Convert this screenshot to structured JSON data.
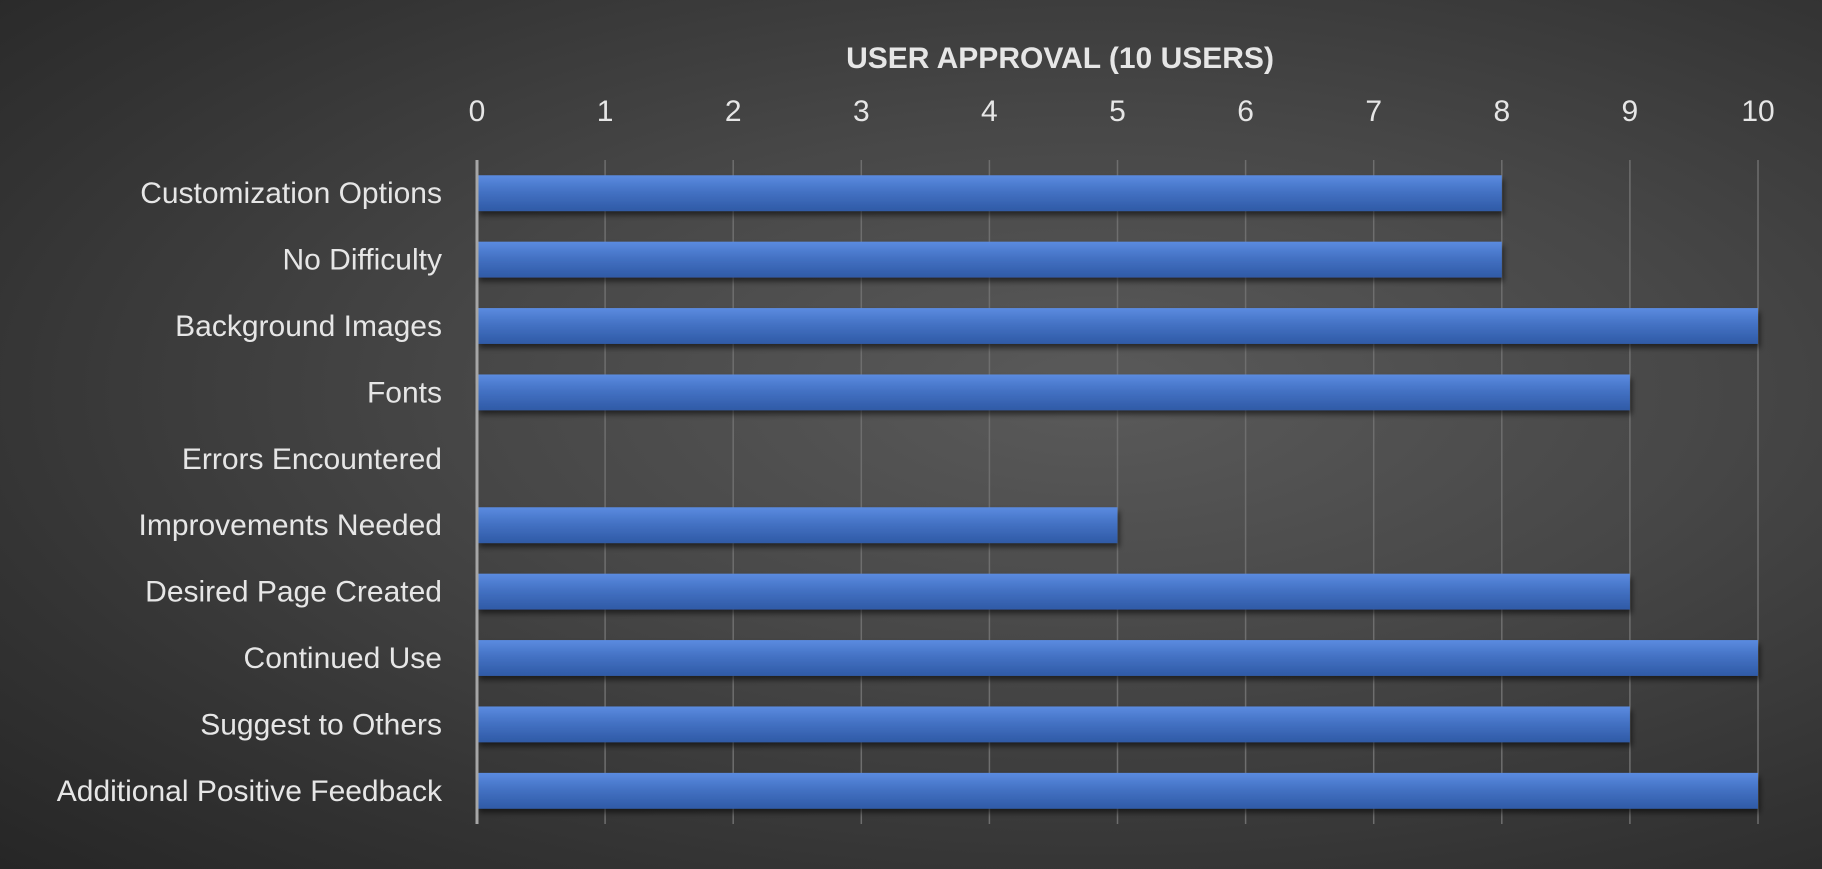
{
  "chart_data": {
    "type": "bar",
    "orientation": "horizontal",
    "title": "USER APPROVAL (10 USERS)",
    "x_axis_position": "top",
    "xlim": [
      0,
      10
    ],
    "x_ticks": [
      0,
      1,
      2,
      3,
      4,
      5,
      6,
      7,
      8,
      9,
      10
    ],
    "grid": true,
    "legend": "none",
    "categories": [
      "Customization Options",
      "No Difficulty",
      "Background Images",
      "Fonts",
      "Errors Encountered",
      "Improvements Needed",
      "Desired Page Created",
      "Continued Use",
      "Suggest to Others",
      "Additional Positive Feedback"
    ],
    "values": [
      8,
      8,
      10,
      9,
      0,
      5,
      9,
      10,
      9,
      10
    ],
    "bar_color": "#4472c4",
    "background_color": "#404040"
  }
}
